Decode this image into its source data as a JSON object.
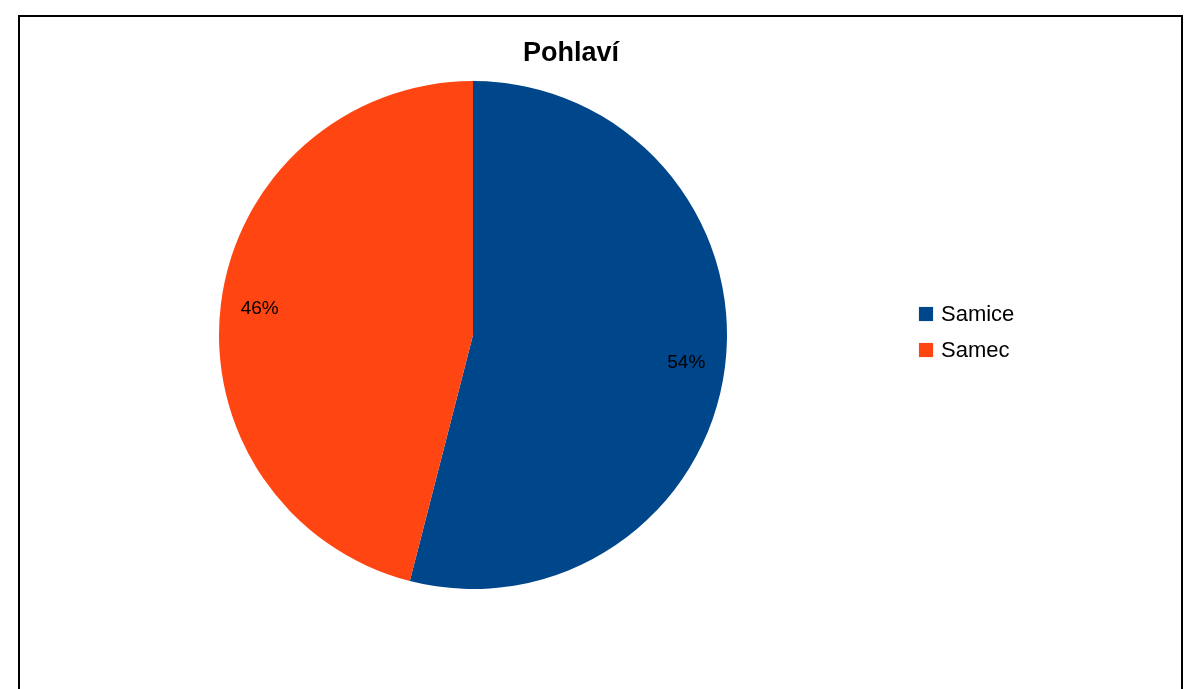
{
  "chart_data": {
    "type": "pie",
    "title": "Pohlaví",
    "categories": [
      "Samice",
      "Samec"
    ],
    "values": [
      54,
      46
    ],
    "colors": [
      "#00468b",
      "#ff4612"
    ],
    "value_labels": [
      "54%",
      "46%"
    ],
    "legend": "right"
  }
}
